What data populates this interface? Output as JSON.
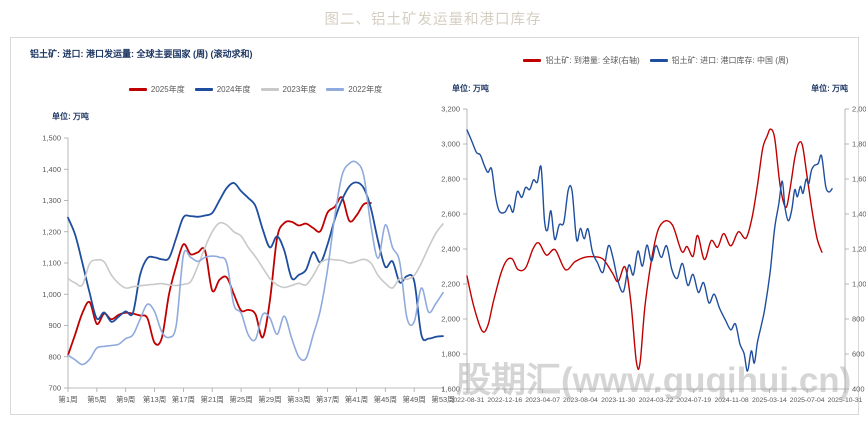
{
  "figure_title": "图二、铝土矿发运量和港口库存",
  "watermark": "股期汇(www.guqihui.cn)",
  "colors": {
    "red": "#c00000",
    "navy": "#1f4e9e",
    "gray": "#c9c9c9",
    "lightblue": "#8faadc",
    "title_navy": "#1f3864",
    "axis_text": "#595959",
    "axis_line": "#a6a6a6",
    "frame_border": "#d9d9d9",
    "figure_title_color": "#d5cfc3"
  },
  "chart_data": [
    {
      "type": "line",
      "title": "铝土矿: 进口: 港口发运量: 全球主要国家 (周) (滚动求和)",
      "unit": "单位: 万吨",
      "ylabel": "万吨",
      "ylim": [
        700,
        1500
      ],
      "y_step": 100,
      "grid": false,
      "legend_position": "top-center",
      "x_tick_labels": [
        "第1周",
        "第5周",
        "第9周",
        "第13周",
        "第17周",
        "第21周",
        "第25周",
        "第29周",
        "第33周",
        "第37周",
        "第41周",
        "第45周",
        "第49周",
        "第53周"
      ],
      "x_weeks": [
        1,
        53
      ],
      "series": [
        {
          "name": "2025年度",
          "color": "#c00000",
          "width": 1.8,
          "values": [
            805,
            872,
            940,
            975,
            905,
            938,
            920,
            934,
            941,
            938,
            932,
            924,
            845,
            860,
            1000,
            1090,
            1160,
            1128,
            1134,
            1140,
            1012,
            1046,
            1054,
            1000,
            948,
            950,
            936,
            862,
            980,
            1180,
            1228,
            1232,
            1220,
            1226,
            1212,
            1202,
            1262,
            1280,
            1310,
            1235,
            1252,
            1288,
            1292,
            null,
            null,
            null,
            null,
            null,
            null,
            null,
            null,
            null,
            null
          ]
        },
        {
          "name": "2024年度",
          "color": "#1f4e9e",
          "width": 1.8,
          "values": [
            1245,
            1190,
            1100,
            1005,
            922,
            942,
            912,
            928,
            945,
            940,
            1062,
            1115,
            1118,
            1112,
            1116,
            1180,
            1246,
            1250,
            1248,
            1252,
            1260,
            1300,
            1340,
            1356,
            1330,
            1308,
            1282,
            1208,
            1150,
            1185,
            1140,
            1052,
            1062,
            1078,
            1135,
            1102,
            1160,
            1240,
            1302,
            1345,
            1358,
            1340,
            1275,
            1170,
            1088,
            1105,
            1038,
            1058,
            1042,
            870,
            858,
            864,
            866
          ]
        },
        {
          "name": "2023年度",
          "color": "#c9c9c9",
          "width": 1.6,
          "values": [
            1050,
            1036,
            1030,
            1098,
            1110,
            1104,
            1062,
            1035,
            1020,
            1024,
            1027,
            1030,
            1032,
            1034,
            1030,
            1028,
            1032,
            1040,
            1090,
            1150,
            1200,
            1228,
            1222,
            1200,
            1186,
            1150,
            1120,
            1085,
            1050,
            1030,
            1022,
            1028,
            1035,
            1030,
            1060,
            1100,
            1112,
            1110,
            1108,
            1100,
            1105,
            1112,
            1100,
            1060,
            1035,
            1020,
            1050,
            1048,
            1060,
            1100,
            1150,
            1195,
            1225
          ]
        },
        {
          "name": "2022年度",
          "color": "#8faadc",
          "width": 1.6,
          "values": [
            805,
            790,
            775,
            792,
            828,
            833,
            836,
            840,
            858,
            870,
            920,
            968,
            945,
            880,
            862,
            900,
            1125,
            1118,
            1105,
            1118,
            1122,
            1118,
            1100,
            966,
            940,
            870,
            856,
            935,
            924,
            872,
            930,
            860,
            800,
            795,
            870,
            950,
            1080,
            1250,
            1380,
            1418,
            1422,
            1380,
            1220,
            1115,
            1222,
            1150,
            1103,
            925,
            912,
            1020,
            943,
            970,
            1005
          ]
        }
      ]
    },
    {
      "type": "line",
      "unit_left": "单位: 万吨",
      "unit_right": "单位: 万吨",
      "ylim_left": [
        1600,
        3200
      ],
      "ylim_right": [
        400,
        2000
      ],
      "y_step": 200,
      "grid": false,
      "legend_position": "top-center",
      "x_tick_labels": [
        "2022-08-31",
        "2022-12-16",
        "2023-04-07",
        "2023-08-04",
        "2023-11-30",
        "2024-03-22",
        "2024-07-19",
        "2024-11-08",
        "2025-03-14",
        "2025-07-04",
        "2025-10-31"
      ],
      "series": [
        {
          "name": "铝土矿: 到港量: 全球(右轴)",
          "color": "#c00000",
          "axis": "right",
          "width": 1.4,
          "points": [
            [
              0,
              1045
            ],
            [
              0.018,
              872
            ],
            [
              0.04,
              732
            ],
            [
              0.055,
              762
            ],
            [
              0.07,
              902
            ],
            [
              0.09,
              1062
            ],
            [
              0.105,
              1135
            ],
            [
              0.12,
              1142
            ],
            [
              0.135,
              1082
            ],
            [
              0.155,
              1092
            ],
            [
              0.175,
              1202
            ],
            [
              0.19,
              1235
            ],
            [
              0.21,
              1165
            ],
            [
              0.233,
              1196
            ],
            [
              0.26,
              1082
            ],
            [
              0.285,
              1126
            ],
            [
              0.31,
              1152
            ],
            [
              0.335,
              1156
            ],
            [
              0.36,
              1142
            ],
            [
              0.385,
              1062
            ],
            [
              0.4,
              1014
            ],
            [
              0.418,
              1098
            ],
            [
              0.433,
              905
            ],
            [
              0.448,
              558
            ],
            [
              0.458,
              552
            ],
            [
              0.472,
              895
            ],
            [
              0.498,
              1248
            ],
            [
              0.518,
              1352
            ],
            [
              0.543,
              1338
            ],
            [
              0.568,
              1186
            ],
            [
              0.582,
              1214
            ],
            [
              0.598,
              1158
            ],
            [
              0.61,
              1278
            ],
            [
              0.628,
              1140
            ],
            [
              0.646,
              1248
            ],
            [
              0.663,
              1210
            ],
            [
              0.679,
              1288
            ],
            [
              0.698,
              1218
            ],
            [
              0.718,
              1298
            ],
            [
              0.738,
              1262
            ],
            [
              0.754,
              1378
            ],
            [
              0.768,
              1558
            ],
            [
              0.782,
              1772
            ],
            [
              0.794,
              1845
            ],
            [
              0.803,
              1885
            ],
            [
              0.814,
              1832
            ],
            [
              0.828,
              1568
            ],
            [
              0.843,
              1438
            ],
            [
              0.854,
              1535
            ],
            [
              0.867,
              1718
            ],
            [
              0.877,
              1802
            ],
            [
              0.887,
              1795
            ],
            [
              0.898,
              1642
            ],
            [
              0.912,
              1432
            ],
            [
              0.926,
              1262
            ],
            [
              0.939,
              1182
            ]
          ]
        },
        {
          "name": "铝土矿: 进口: 港口库存: 中国 (周)",
          "color": "#1f4e9e",
          "axis": "left",
          "width": 1.4,
          "points": [
            [
              0,
              3080
            ],
            [
              0.012,
              3020
            ],
            [
              0.025,
              2952
            ],
            [
              0.035,
              2938
            ],
            [
              0.045,
              2882
            ],
            [
              0.055,
              2838
            ],
            [
              0.065,
              2858
            ],
            [
              0.075,
              2705
            ],
            [
              0.085,
              2618
            ],
            [
              0.1,
              2610
            ],
            [
              0.112,
              2652
            ],
            [
              0.122,
              2612
            ],
            [
              0.133,
              2728
            ],
            [
              0.145,
              2695
            ],
            [
              0.155,
              2752
            ],
            [
              0.166,
              2740
            ],
            [
              0.176,
              2795
            ],
            [
              0.186,
              2782
            ],
            [
              0.196,
              2868
            ],
            [
              0.205,
              2562
            ],
            [
              0.213,
              2508
            ],
            [
              0.222,
              2618
            ],
            [
              0.232,
              2455
            ],
            [
              0.244,
              2538
            ],
            [
              0.256,
              2552
            ],
            [
              0.268,
              2738
            ],
            [
              0.278,
              2730
            ],
            [
              0.29,
              2452
            ],
            [
              0.3,
              2518
            ],
            [
              0.31,
              2458
            ],
            [
              0.32,
              2515
            ],
            [
              0.332,
              2382
            ],
            [
              0.345,
              2322
            ],
            [
              0.36,
              2268
            ],
            [
              0.374,
              2418
            ],
            [
              0.386,
              2352
            ],
            [
              0.4,
              2212
            ],
            [
              0.414,
              2158
            ],
            [
              0.428,
              2308
            ],
            [
              0.44,
              2252
            ],
            [
              0.452,
              2388
            ],
            [
              0.464,
              2302
            ],
            [
              0.476,
              2422
            ],
            [
              0.488,
              2330
            ],
            [
              0.5,
              2420
            ],
            [
              0.514,
              2352
            ],
            [
              0.528,
              2418
            ],
            [
              0.542,
              2282
            ],
            [
              0.556,
              2232
            ],
            [
              0.57,
              2318
            ],
            [
              0.584,
              2192
            ],
            [
              0.598,
              2255
            ],
            [
              0.612,
              2152
            ],
            [
              0.626,
              2208
            ],
            [
              0.64,
              2092
            ],
            [
              0.654,
              2142
            ],
            [
              0.668,
              2062
            ],
            [
              0.684,
              1992
            ],
            [
              0.698,
              1938
            ],
            [
              0.71,
              1972
            ],
            [
              0.722,
              1858
            ],
            [
              0.733,
              1802
            ],
            [
              0.742,
              1702
            ],
            [
              0.752,
              1818
            ],
            [
              0.76,
              1748
            ],
            [
              0.768,
              1862
            ],
            [
              0.778,
              1958
            ],
            [
              0.788,
              2062
            ],
            [
              0.802,
              2270
            ],
            [
              0.814,
              2520
            ],
            [
              0.825,
              2658
            ],
            [
              0.834,
              2788
            ],
            [
              0.841,
              2642
            ],
            [
              0.85,
              2562
            ],
            [
              0.859,
              2622
            ],
            [
              0.867,
              2738
            ],
            [
              0.874,
              2698
            ],
            [
              0.882,
              2758
            ],
            [
              0.889,
              2718
            ],
            [
              0.897,
              2798
            ],
            [
              0.904,
              2772
            ],
            [
              0.911,
              2848
            ],
            [
              0.919,
              2878
            ],
            [
              0.929,
              2888
            ],
            [
              0.938,
              2932
            ],
            [
              0.949,
              2758
            ],
            [
              0.958,
              2726
            ],
            [
              0.966,
              2744
            ]
          ]
        }
      ]
    }
  ]
}
